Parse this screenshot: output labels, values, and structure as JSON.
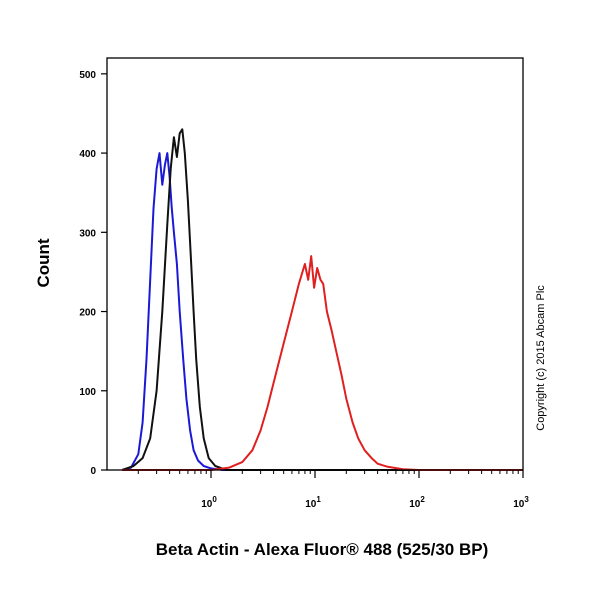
{
  "chart_data": {
    "type": "line",
    "title": "",
    "xlabel": "Beta Actin - Alexa Fluor® 488 (525/30 BP)",
    "ylabel": "Count",
    "x_scale": "log",
    "xlim": [
      0.1,
      1000
    ],
    "ylim": [
      0,
      520
    ],
    "yticks": [
      0,
      100,
      200,
      300,
      400,
      500
    ],
    "xticks": [
      {
        "value": 1,
        "base": "10",
        "exp": "0"
      },
      {
        "value": 10,
        "base": "10",
        "exp": "1"
      },
      {
        "value": 100,
        "base": "10",
        "exp": "2"
      },
      {
        "value": 1000,
        "base": "10",
        "exp": "3"
      }
    ],
    "grid": false,
    "legend": "none",
    "annotation": "Copyright (c) 2015 Abcam Plc",
    "series": [
      {
        "color": "#1a1ad6",
        "x": [
          0.14,
          0.17,
          0.2,
          0.22,
          0.24,
          0.26,
          0.28,
          0.3,
          0.32,
          0.34,
          0.36,
          0.38,
          0.4,
          0.42,
          0.44,
          0.47,
          0.5,
          0.54,
          0.58,
          0.63,
          0.68,
          0.75,
          0.85,
          1.0,
          1.3,
          2.0,
          1000
        ],
        "y": [
          0,
          3,
          20,
          60,
          140,
          240,
          330,
          380,
          400,
          360,
          385,
          400,
          370,
          330,
          300,
          260,
          200,
          140,
          90,
          50,
          25,
          12,
          5,
          2,
          0,
          0,
          0
        ]
      },
      {
        "color": "#111111",
        "x": [
          0.14,
          0.18,
          0.22,
          0.26,
          0.3,
          0.34,
          0.38,
          0.41,
          0.44,
          0.47,
          0.5,
          0.53,
          0.56,
          0.6,
          0.64,
          0.68,
          0.72,
          0.78,
          0.85,
          0.95,
          1.1,
          1.4,
          2.0,
          1000
        ],
        "y": [
          0,
          5,
          15,
          40,
          100,
          200,
          310,
          380,
          420,
          395,
          425,
          430,
          400,
          340,
          270,
          200,
          140,
          80,
          40,
          15,
          5,
          0,
          0,
          0
        ]
      },
      {
        "color": "#e02020",
        "x": [
          0.14,
          1.0,
          1.5,
          2.0,
          2.5,
          3.0,
          3.5,
          4.0,
          5.0,
          6.0,
          7.0,
          8.0,
          8.6,
          9.2,
          9.8,
          10.5,
          11.3,
          12.0,
          13.0,
          14.5,
          16.0,
          18.0,
          20.0,
          23.0,
          26.0,
          30.0,
          35.0,
          40.0,
          50.0,
          70.0,
          100.0,
          1000
        ],
        "y": [
          0,
          0,
          3,
          10,
          25,
          50,
          80,
          110,
          160,
          200,
          235,
          260,
          240,
          270,
          230,
          255,
          240,
          235,
          200,
          175,
          150,
          120,
          90,
          60,
          40,
          25,
          15,
          8,
          4,
          1,
          0,
          0
        ]
      }
    ]
  }
}
